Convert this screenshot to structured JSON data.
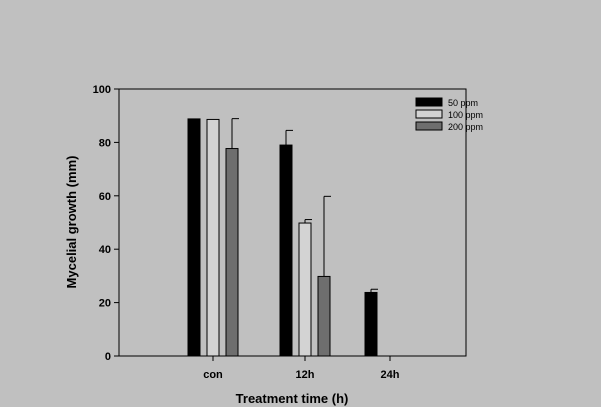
{
  "chart_data": {
    "type": "bar",
    "title": "",
    "xlabel": "Treatment time (h)",
    "ylabel": "Mycelial growth (mm)",
    "categories": [
      "con",
      "12h",
      "24h"
    ],
    "ylim": [
      0,
      100
    ],
    "yticks": [
      0,
      20,
      40,
      60,
      80,
      100
    ],
    "grid": false,
    "legend_position": "top-right",
    "series": [
      {
        "name": "50 ppm",
        "color": "#000000",
        "values": [
          88.8,
          79.0,
          23.8
        ],
        "errors": [
          0,
          5.5,
          1.2
        ]
      },
      {
        "name": "100 ppm",
        "color": "#d3d3d3",
        "values": [
          88.6,
          49.8,
          null
        ],
        "errors": [
          0,
          1.3,
          null
        ]
      },
      {
        "name": "200 ppm",
        "color": "#6e6e6e",
        "values": [
          77.7,
          29.8,
          null
        ],
        "errors": [
          11.2,
          30.0,
          null
        ]
      }
    ]
  }
}
